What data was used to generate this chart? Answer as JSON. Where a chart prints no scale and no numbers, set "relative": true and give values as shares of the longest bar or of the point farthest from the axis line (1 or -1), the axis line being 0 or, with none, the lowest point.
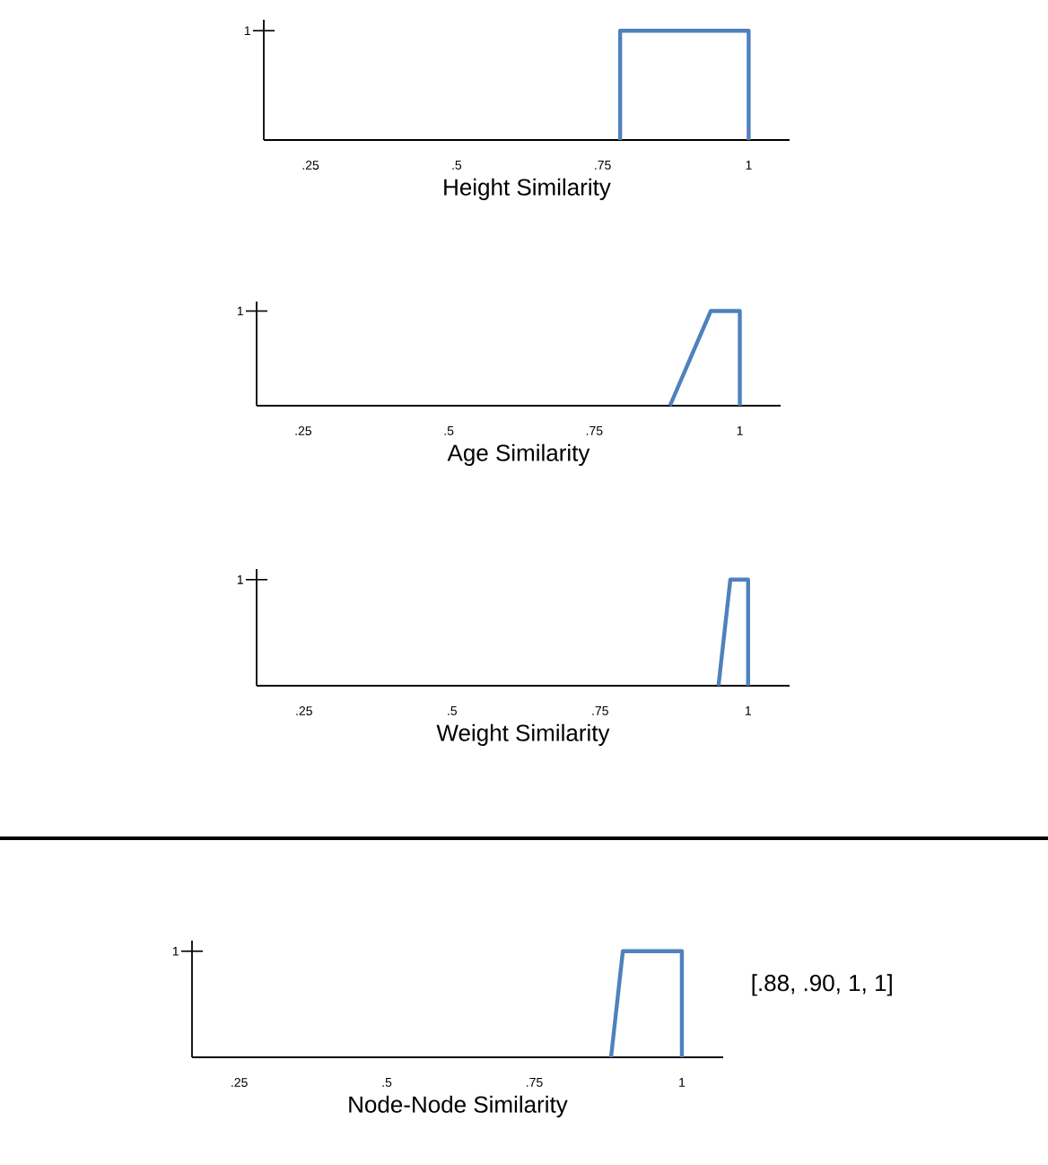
{
  "chart_data": [
    {
      "type": "line",
      "xlabel": "Height Similarity",
      "xlim": [
        0.17,
        1.07
      ],
      "xticks": [
        {
          "value": 0.25,
          "label": ".25"
        },
        {
          "value": 0.5,
          "label": ".5"
        },
        {
          "value": 0.75,
          "label": ".75"
        },
        1
      ],
      "relative": true,
      "annotations": [
        "1"
      ],
      "series": [
        {
          "color": "#4f81bd",
          "x": [
            0.78,
            0.78,
            1,
            1
          ],
          "values": [
            0,
            1,
            1,
            0
          ]
        }
      ]
    },
    {
      "type": "line",
      "xlabel": "Age Similarity",
      "xlim": [
        0.17,
        1.07
      ],
      "xticks": [
        {
          "value": 0.25,
          "label": ".25"
        },
        {
          "value": 0.5,
          "label": ".5"
        },
        {
          "value": 0.75,
          "label": ".75"
        },
        1
      ],
      "relative": true,
      "annotations": [
        "1"
      ],
      "series": [
        {
          "color": "#4f81bd",
          "x": [
            0.88,
            0.95,
            1,
            1
          ],
          "values": [
            0,
            1,
            1,
            0
          ]
        }
      ]
    },
    {
      "type": "line",
      "xlabel": "Weight Similarity",
      "xlim": [
        0.17,
        1.07
      ],
      "xticks": [
        {
          "value": 0.25,
          "label": ".25"
        },
        {
          "value": 0.5,
          "label": ".5"
        },
        {
          "value": 0.75,
          "label": ".75"
        },
        1
      ],
      "relative": true,
      "annotations": [
        "1"
      ],
      "series": [
        {
          "color": "#4f81bd",
          "x": [
            0.95,
            0.97,
            1,
            1
          ],
          "values": [
            0,
            1,
            1,
            0
          ]
        }
      ]
    },
    {
      "type": "line",
      "xlabel": "Node-Node Similarity",
      "xlim": [
        0.17,
        1.07
      ],
      "xticks": [
        {
          "value": 0.25,
          "label": ".25"
        },
        {
          "value": 0.5,
          "label": ".5"
        },
        {
          "value": 0.75,
          "label": ".75"
        },
        1
      ],
      "relative": true,
      "annotations": [
        "1",
        "[.88, .90, 1, 1]"
      ],
      "series": [
        {
          "color": "#4f81bd",
          "x": [
            0.88,
            0.9,
            1,
            1
          ],
          "values": [
            0,
            1,
            1,
            0
          ]
        }
      ]
    }
  ]
}
